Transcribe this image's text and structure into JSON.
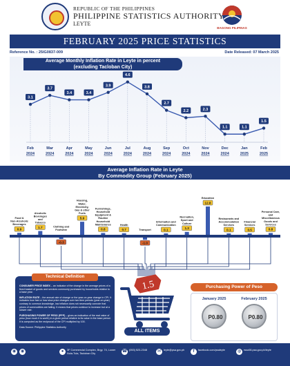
{
  "header": {
    "org_line1": "REPUBLIC OF THE PHILIPPINES",
    "org_line2": "PHILIPPINE STATISTICS AUTHORITY",
    "org_line3": "LEYTE",
    "bp_text": "BAGONG PILIPINAS",
    "title": "FEBRUARY 2025 PRICE STATISTICS",
    "reference": "Reference No. : 25IG0837-009",
    "released": "Date Released: 07 March 2025"
  },
  "chart_data": [
    {
      "type": "line",
      "title": "Average Monthly Inflation Rate in Leyte in percent (excluding Tacloban City)",
      "title_lines": [
        "Average Monthly Inflation Rate in Leyte in percent",
        "(excluding Tacloban City)"
      ],
      "x": [
        {
          "month": "Feb",
          "year": "2024"
        },
        {
          "month": "Mar",
          "year": "2024"
        },
        {
          "month": "Apr",
          "year": "2024"
        },
        {
          "month": "May",
          "year": "2024"
        },
        {
          "month": "Jun",
          "year": "2024"
        },
        {
          "month": "Jul",
          "year": "2024"
        },
        {
          "month": "Aug",
          "year": "2024"
        },
        {
          "month": "Sep",
          "year": "2024"
        },
        {
          "month": "Oct",
          "year": "2024"
        },
        {
          "month": "Nov",
          "year": "2024"
        },
        {
          "month": "Dec",
          "year": "2024"
        },
        {
          "month": "Jan",
          "year": "2025"
        },
        {
          "month": "Feb",
          "year": "2025"
        }
      ],
      "values": [
        3.1,
        3.7,
        3.4,
        3.4,
        3.9,
        4.6,
        3.8,
        2.7,
        2.2,
        2.3,
        1.1,
        1.1,
        1.5
      ],
      "ylim": [
        0,
        5
      ],
      "grid": false
    },
    {
      "type": "bar",
      "title": "Average Inflation Rate in Leyte By Commodity Group (February 2025)",
      "title_lines": [
        "Average Inflation Rate in Leyte",
        "By Commodity Group (February 2025)"
      ],
      "categories": [
        "Food & Non-Alcoholic Beverages",
        "Alcoholic Beverages and Tobacco",
        "Clothing and Footwear",
        "Housing, Water, Electricity, Gas & other Fuels",
        "Furnishings, Household Equipment & Routine Household Maintenance",
        "Health",
        "Transport",
        "Information and Communication",
        "Recreation, Sport and Culture",
        "Education",
        "Restaurants and Accommodation Services",
        "Financial Services",
        "Personal Care, and Miscellaneous Goods and Services"
      ],
      "category_lines": [
        [
          "Food &",
          "Non-Alcoholic",
          "Beverages"
        ],
        [
          "Alcoholic",
          "Beverages",
          "and",
          "Tobacco"
        ],
        [
          "Clothing and",
          "Footwear"
        ],
        [
          "Housing,",
          "Water,",
          "Electricity,",
          "Gas & other",
          "Fuels"
        ],
        [
          "Furnishings,",
          "Household",
          "Equipment &",
          "Routine",
          "Household",
          "Maintenance"
        ],
        [
          "Health"
        ],
        [
          "Transport"
        ],
        [
          "Information and",
          "Communication"
        ],
        [
          "Recreation,",
          "Sport and",
          "Culture"
        ],
        [
          "Education"
        ],
        [
          "Restaurants and",
          "Accommodation",
          "Services"
        ],
        [
          "Financial",
          "Services"
        ],
        [
          "Personal Care,",
          "and",
          "Miscellaneous",
          "Goods and",
          "Services"
        ]
      ],
      "values": [
        0.9,
        1.7,
        -0.3,
        5.9,
        0.8,
        0.7,
        -1.0,
        0.1,
        1.3,
        12.8,
        0.1,
        0.5,
        0.8
      ],
      "value_labels": [
        "0.9",
        "1.7",
        "-0.3",
        "5.9",
        "0.8",
        "0.7",
        "-1.0",
        "0.1",
        "1.3",
        "12.8",
        "0.1",
        "0.5",
        "0.8"
      ]
    }
  ],
  "overall": {
    "value": "1.5",
    "label": "ALL ITEMS"
  },
  "technical": {
    "heading": "Technical Definition",
    "p1_term": "CONSUMER PRICE INDEX",
    "p1": " – an indicator of the change in the average prices of a fixed basket of goods and services commonly purchased by households relative to a base year.",
    "p2_term": "INFLATION RATE",
    "p2": " – the annual rate of change or the year-on-year change in CPI. It indicates how fast or how slow price changes over two time periods (year-on-year) contrary to common knowledge, low inflation does not necessarily connote that prices of commodities are falling. It means that prices continue to increase but at a slower rate.",
    "p3_term": "PURCHASING POWER OF PESO (PPP)",
    "p3": " – gives an indication of the real value of peso (how much it is worth) in a given period relative to its value in the base period. It is computed as the reciprocal of the CPI multiplied by 100.",
    "source": "Data Source: Philippine Statistics Authority"
  },
  "purchasing_power": {
    "heading": "Purchasing Power of Peso",
    "months": [
      {
        "label": "January 2025",
        "value": "P0.80"
      },
      {
        "label": "February 2025",
        "value": "P0.80"
      }
    ]
  },
  "footer": {
    "address": "3F Commercial Complex, Brgy. 74, Lower Nula-Tula, Tacloban City",
    "phone": "(053) 523-2348",
    "email": "leyte@psa.gov.ph",
    "facebook": "facebook.com/psaleyte",
    "website": "rsso08.psa.gov.ph/leyte"
  },
  "colors": {
    "navy": "#1f3a7a",
    "orange": "#d6622a",
    "gold": "#f2c230",
    "red": "#c0392b"
  }
}
